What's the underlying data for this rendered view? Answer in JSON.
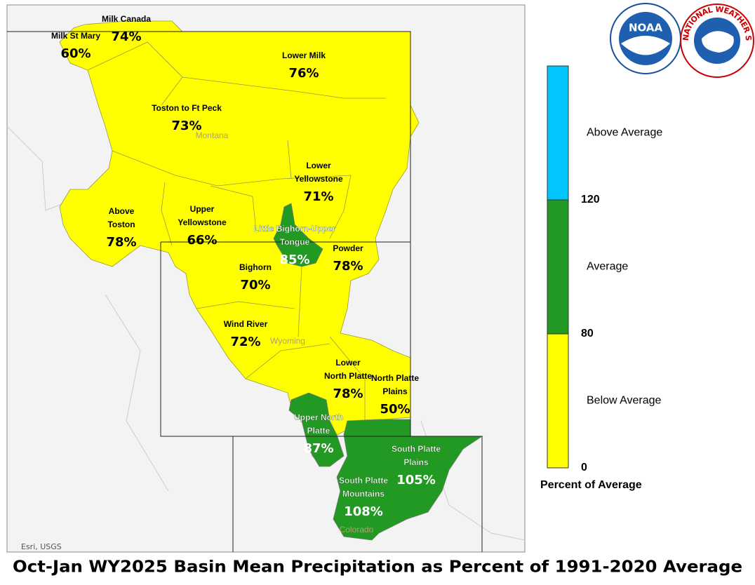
{
  "title": "Oct-Jan WY2025 Basin Mean Precipitation as Percent of 1991-2020 Average",
  "attribution": "Esri, USGS",
  "states": [
    "Montana",
    "Wyoming",
    "Colorado"
  ],
  "logos": {
    "noaa": "NOAA",
    "nws": "NATIONAL WEATHER SERVICE"
  },
  "legend": {
    "title": "Percent of Average",
    "ticks": [
      0,
      80,
      120
    ],
    "classes": [
      {
        "label": "Below Average",
        "color": "#ffff00"
      },
      {
        "label": "Average",
        "color": "#229922"
      },
      {
        "label": "Above Average",
        "color": "#00c5ff"
      }
    ]
  },
  "basins": [
    {
      "name": "Milk Canada",
      "value": "74%",
      "color": "#ffff00"
    },
    {
      "name": "Milk St Mary",
      "value": "60%",
      "color": "#ffff00"
    },
    {
      "name": "Lower Milk",
      "value": "76%",
      "color": "#ffff00"
    },
    {
      "name": "Toston to Ft Peck",
      "value": "73%",
      "color": "#ffff00"
    },
    {
      "name": "Lower Yellowstone",
      "value": "71%",
      "color": "#ffff00"
    },
    {
      "name": "Above Toston",
      "value": "78%",
      "color": "#ffff00"
    },
    {
      "name": "Upper Yellowstone",
      "value": "66%",
      "color": "#ffff00"
    },
    {
      "name": "Little Bighorn-Upper Tongue",
      "value": "85%",
      "color": "#229922"
    },
    {
      "name": "Powder",
      "value": "78%",
      "color": "#ffff00"
    },
    {
      "name": "Bighorn",
      "value": "70%",
      "color": "#ffff00"
    },
    {
      "name": "Wind River",
      "value": "72%",
      "color": "#ffff00"
    },
    {
      "name": "Lower North Platte",
      "value": "78%",
      "color": "#ffff00"
    },
    {
      "name": "North Platte Plains",
      "value": "50%",
      "color": "#ffff00"
    },
    {
      "name": "Upper North Platte",
      "value": "87%",
      "color": "#229922"
    },
    {
      "name": "South Platte Plains",
      "value": "105%",
      "color": "#229922"
    },
    {
      "name": "South Platte Mountains",
      "value": "108%",
      "color": "#229922"
    }
  ]
}
